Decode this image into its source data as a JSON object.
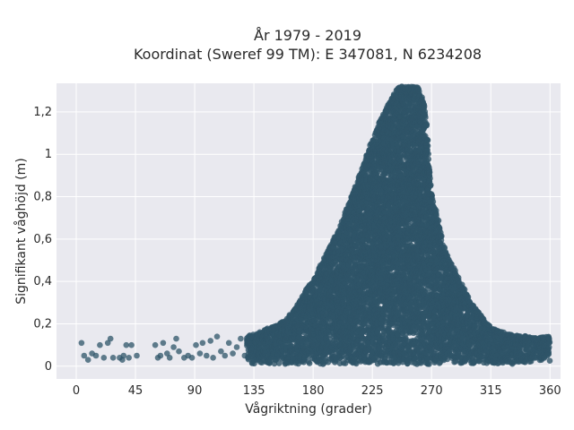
{
  "chart_data": {
    "type": "scatter",
    "title": "År 1979 - 2019",
    "subtitle": "Koordinat (Sweref 99 TM): E 347081, N 6234208",
    "xlabel": "Vågriktning (grader)",
    "ylabel": "Signifikant våghöjd (m)",
    "xlim": [
      -15,
      368
    ],
    "ylim": [
      -0.06,
      1.335
    ],
    "x_ticks": [
      0,
      45,
      90,
      135,
      180,
      225,
      270,
      315,
      360
    ],
    "x_tick_labels": [
      "0",
      "45",
      "90",
      "135",
      "180",
      "225",
      "270",
      "315",
      "360"
    ],
    "y_ticks": [
      0,
      0.2,
      0.4,
      0.6,
      0.8,
      1.0,
      1.2
    ],
    "y_tick_labels": [
      "0",
      "0,2",
      "0,4",
      "0,6",
      "0,8",
      "1",
      "1,2"
    ],
    "grid": true,
    "marker_color": "#2e5468",
    "background_color": "#e9e9ef",
    "series": [
      {
        "envelope_x": [
          0,
          45,
          90,
          135,
          160,
          180,
          200,
          215,
          230,
          240,
          245,
          250,
          255,
          260,
          265,
          270,
          280,
          290,
          300,
          315,
          330,
          345,
          360
        ],
        "envelope_ymax": [
          0.12,
          0.12,
          0.13,
          0.15,
          0.22,
          0.41,
          0.65,
          0.9,
          1.15,
          1.27,
          1.32,
          1.32,
          1.32,
          1.32,
          1.22,
          0.82,
          0.55,
          0.42,
          0.3,
          0.18,
          0.15,
          0.14,
          0.14
        ],
        "envelope_ymin": [
          0.02,
          0.02,
          0.02,
          0.01,
          0.01,
          0.01,
          0.01,
          0.01,
          0.01,
          0.01,
          0.01,
          0.01,
          0.01,
          0.01,
          0.01,
          0.01,
          0.01,
          0.01,
          0.01,
          0.01,
          0.01,
          0.02,
          0.02
        ],
        "sparse_points": [
          [
            4,
            0.11
          ],
          [
            6,
            0.05
          ],
          [
            9,
            0.03
          ],
          [
            12,
            0.06
          ],
          [
            15,
            0.05
          ],
          [
            18,
            0.1
          ],
          [
            21,
            0.04
          ],
          [
            24,
            0.11
          ],
          [
            26,
            0.13
          ],
          [
            28,
            0.04
          ],
          [
            33,
            0.04
          ],
          [
            35,
            0.03
          ],
          [
            36,
            0.05
          ],
          [
            38,
            0.1
          ],
          [
            40,
            0.04
          ],
          [
            42,
            0.1
          ],
          [
            46,
            0.05
          ],
          [
            60,
            0.1
          ],
          [
            62,
            0.04
          ],
          [
            64,
            0.05
          ],
          [
            66,
            0.11
          ],
          [
            69,
            0.06
          ],
          [
            71,
            0.04
          ],
          [
            74,
            0.09
          ],
          [
            76,
            0.13
          ],
          [
            78,
            0.07
          ],
          [
            82,
            0.04
          ],
          [
            85,
            0.05
          ],
          [
            88,
            0.04
          ],
          [
            91,
            0.1
          ],
          [
            94,
            0.06
          ],
          [
            96,
            0.11
          ],
          [
            99,
            0.05
          ],
          [
            102,
            0.12
          ],
          [
            104,
            0.04
          ],
          [
            107,
            0.14
          ],
          [
            110,
            0.07
          ],
          [
            113,
            0.05
          ],
          [
            116,
            0.11
          ],
          [
            119,
            0.06
          ],
          [
            122,
            0.09
          ],
          [
            125,
            0.13
          ],
          [
            128,
            0.05
          ]
        ]
      }
    ]
  }
}
